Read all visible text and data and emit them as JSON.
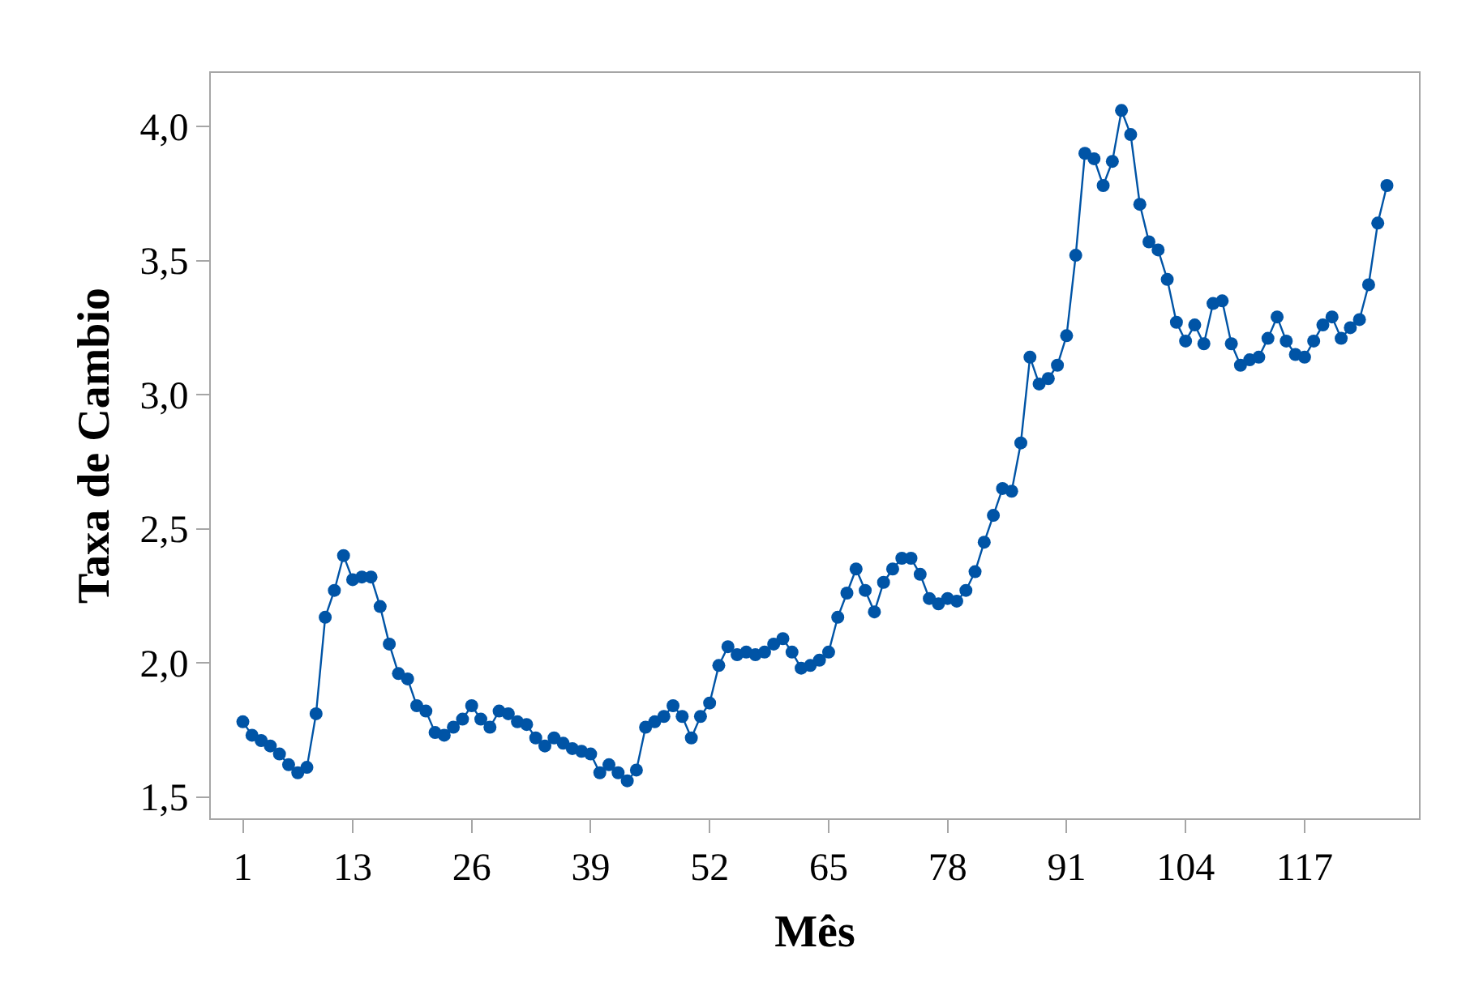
{
  "chart_data": {
    "type": "line",
    "xlabel": "Mês",
    "ylabel": "Taxa de Cambio",
    "x": [
      1,
      2,
      3,
      4,
      5,
      6,
      7,
      8,
      9,
      10,
      11,
      12,
      13,
      14,
      15,
      16,
      17,
      18,
      19,
      20,
      21,
      22,
      23,
      24,
      25,
      26,
      27,
      28,
      29,
      30,
      31,
      32,
      33,
      34,
      35,
      36,
      37,
      38,
      39,
      40,
      41,
      42,
      43,
      44,
      45,
      46,
      47,
      48,
      49,
      50,
      51,
      52,
      53,
      54,
      55,
      56,
      57,
      58,
      59,
      60,
      61,
      62,
      63,
      64,
      65,
      66,
      67,
      68,
      69,
      70,
      71,
      72,
      73,
      74,
      75,
      76,
      77,
      78,
      79,
      80,
      81,
      82,
      83,
      84,
      85,
      86,
      87,
      88,
      89,
      90,
      91,
      92,
      93,
      94,
      95,
      96,
      97,
      98,
      99,
      100,
      101,
      102,
      103,
      104,
      105,
      106,
      107,
      108,
      109,
      110,
      111,
      112,
      113,
      114,
      115,
      116,
      117,
      118,
      119,
      120,
      121,
      122,
      123,
      124,
      125,
      126
    ],
    "series": [
      {
        "color": "#0054a6",
        "values": [
          1.78,
          1.73,
          1.71,
          1.69,
          1.66,
          1.62,
          1.59,
          1.61,
          1.81,
          2.17,
          2.27,
          2.4,
          2.31,
          2.32,
          2.32,
          2.21,
          2.07,
          1.96,
          1.94,
          1.84,
          1.82,
          1.74,
          1.73,
          1.76,
          1.79,
          1.84,
          1.79,
          1.76,
          1.82,
          1.81,
          1.78,
          1.77,
          1.72,
          1.69,
          1.72,
          1.7,
          1.68,
          1.67,
          1.66,
          1.59,
          1.62,
          1.59,
          1.56,
          1.6,
          1.76,
          1.78,
          1.8,
          1.84,
          1.8,
          1.72,
          1.8,
          1.85,
          1.99,
          2.06,
          2.03,
          2.04,
          2.03,
          2.04,
          2.07,
          2.09,
          2.04,
          1.98,
          1.99,
          2.01,
          2.04,
          2.17,
          2.26,
          2.35,
          2.27,
          2.19,
          2.3,
          2.35,
          2.39,
          2.39,
          2.33,
          2.24,
          2.22,
          2.24,
          2.23,
          2.27,
          2.34,
          2.45,
          2.55,
          2.65,
          2.64,
          2.82,
          3.14,
          3.04,
          3.06,
          3.11,
          3.22,
          3.52,
          3.9,
          3.88,
          3.78,
          3.87,
          4.06,
          3.97,
          3.71,
          3.57,
          3.54,
          3.43,
          3.27,
          3.2,
          3.26,
          3.19,
          3.34,
          3.35,
          3.19,
          3.11,
          3.13,
          3.14,
          3.21,
          3.29,
          3.2,
          3.15,
          3.14,
          3.2,
          3.26,
          3.29,
          3.21,
          3.25,
          3.28,
          3.41,
          3.64,
          3.78
        ]
      }
    ],
    "xlim": [
      -2.5,
      129.5
    ],
    "xticks": [
      1,
      13,
      26,
      39,
      52,
      65,
      78,
      91,
      104,
      117
    ],
    "ylim": [
      1.42,
      4.2
    ],
    "yticks": [
      {
        "value": 1.5,
        "label": "1,5"
      },
      {
        "value": 2.0,
        "label": "2,0"
      },
      {
        "value": 2.5,
        "label": "2,5"
      },
      {
        "value": 3.0,
        "label": "3,0"
      },
      {
        "value": 3.5,
        "label": "3,5"
      },
      {
        "value": 4.0,
        "label": "4,0"
      }
    ],
    "marker": "circle",
    "line_style": "solid"
  }
}
